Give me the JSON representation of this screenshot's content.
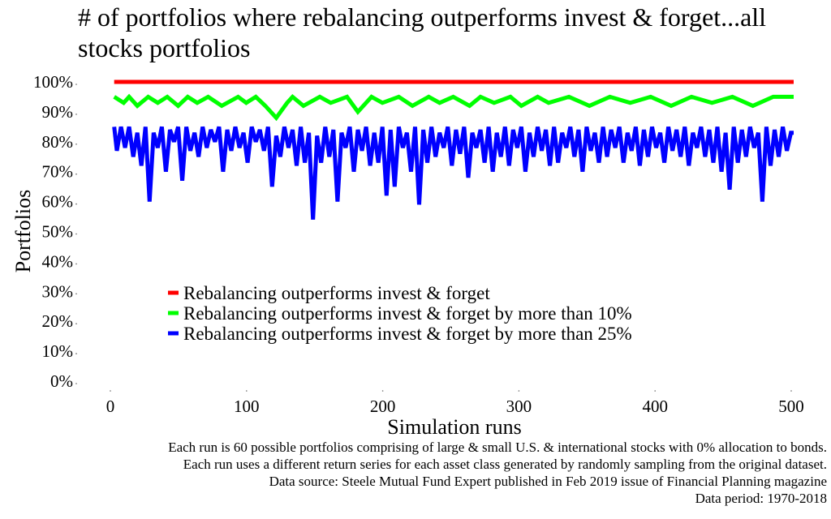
{
  "chart_data": {
    "type": "line",
    "title": "# of portfolios where rebalancing outperforms invest & forget...all stocks portfolios",
    "xlabel": "Simulation runs",
    "ylabel": "Portfolios",
    "xlim": [
      0,
      500
    ],
    "ylim": [
      0,
      100
    ],
    "x_ticks": [
      "0",
      "100",
      "200",
      "300",
      "400",
      "500"
    ],
    "y_ticks": [
      "0%",
      "10%",
      "20%",
      "30%",
      "40%",
      "50%",
      "60%",
      "70%",
      "80%",
      "90%",
      "100%"
    ],
    "grid": false,
    "legend_position": "center-left",
    "series": [
      {
        "name": "Rebalancing outperforms invest & forget",
        "color": "#ff0000",
        "x": [
          1,
          500
        ],
        "values": [
          100,
          100
        ]
      },
      {
        "name": "Rebalancing outperforms invest & forget by more than 10%",
        "color": "#00ff00",
        "x": [
          1,
          8,
          12,
          18,
          26,
          33,
          40,
          48,
          55,
          62,
          70,
          80,
          92,
          98,
          105,
          112,
          120,
          128,
          132,
          140,
          152,
          160,
          172,
          180,
          190,
          198,
          210,
          220,
          232,
          240,
          250,
          262,
          270,
          280,
          292,
          300,
          312,
          320,
          335,
          350,
          365,
          380,
          395,
          410,
          425,
          440,
          455,
          470,
          485,
          500
        ],
        "values": [
          95,
          93,
          95,
          92,
          95,
          93,
          95,
          92,
          95,
          93,
          95,
          92,
          95,
          93,
          95,
          92,
          88,
          93,
          95,
          92,
          95,
          93,
          95,
          90,
          95,
          93,
          95,
          92,
          95,
          93,
          95,
          92,
          95,
          93,
          95,
          92,
          95,
          93,
          95,
          92,
          95,
          93,
          95,
          92,
          95,
          93,
          95,
          92,
          95,
          95
        ]
      },
      {
        "name": "Rebalancing outperforms invest & forget by more than 25%",
        "color": "#0000ff",
        "x": [
          1,
          3,
          6,
          9,
          12,
          15,
          18,
          21,
          24,
          27,
          30,
          33,
          36,
          39,
          42,
          45,
          48,
          51,
          54,
          57,
          60,
          63,
          66,
          69,
          72,
          75,
          78,
          81,
          84,
          87,
          90,
          93,
          96,
          99,
          102,
          105,
          108,
          111,
          114,
          117,
          120,
          123,
          126,
          129,
          132,
          135,
          138,
          141,
          144,
          147,
          150,
          153,
          156,
          159,
          162,
          165,
          168,
          171,
          174,
          177,
          180,
          183,
          186,
          189,
          192,
          195,
          198,
          201,
          204,
          207,
          210,
          213,
          216,
          219,
          222,
          225,
          228,
          231,
          234,
          237,
          240,
          243,
          246,
          249,
          252,
          255,
          258,
          261,
          264,
          267,
          270,
          273,
          276,
          279,
          282,
          285,
          288,
          291,
          294,
          297,
          300,
          303,
          306,
          309,
          312,
          315,
          318,
          321,
          324,
          327,
          330,
          333,
          336,
          339,
          342,
          345,
          348,
          351,
          354,
          357,
          360,
          363,
          366,
          369,
          372,
          375,
          378,
          381,
          384,
          387,
          390,
          393,
          396,
          399,
          402,
          405,
          408,
          411,
          414,
          417,
          420,
          423,
          426,
          429,
          432,
          435,
          438,
          441,
          444,
          447,
          450,
          453,
          456,
          459,
          462,
          465,
          468,
          471,
          474,
          477,
          480,
          483,
          486,
          489,
          492,
          495,
          498,
          500
        ],
        "values": [
          85,
          77,
          85,
          78,
          85,
          75,
          83,
          72,
          85,
          60,
          83,
          78,
          85,
          70,
          84,
          80,
          85,
          67,
          85,
          77,
          83,
          75,
          85,
          78,
          84,
          80,
          85,
          70,
          84,
          77,
          85,
          78,
          83,
          73,
          85,
          80,
          84,
          77,
          85,
          65,
          82,
          75,
          85,
          78,
          84,
          72,
          85,
          73,
          83,
          54,
          82,
          73,
          85,
          75,
          84,
          60,
          83,
          78,
          85,
          70,
          84,
          77,
          85,
          72,
          83,
          73,
          85,
          62,
          84,
          65,
          85,
          78,
          83,
          70,
          85,
          59,
          84,
          73,
          85,
          75,
          83,
          78,
          85,
          72,
          84,
          76,
          85,
          68,
          83,
          78,
          84,
          73,
          85,
          70,
          83,
          75,
          85,
          72,
          84,
          78,
          85,
          70,
          83,
          75,
          85,
          77,
          84,
          72,
          85,
          73,
          83,
          78,
          85,
          75,
          84,
          70,
          85,
          77,
          83,
          73,
          85,
          75,
          84,
          78,
          85,
          73,
          83,
          77,
          85,
          72,
          84,
          75,
          85,
          78,
          83,
          73,
          85,
          77,
          84,
          75,
          85,
          72,
          83,
          78,
          85,
          75,
          84,
          73,
          85,
          70,
          83,
          64,
          85,
          73,
          84,
          75,
          85,
          78,
          83,
          60,
          85,
          72,
          84,
          75,
          85,
          77,
          83,
          83
        ]
      }
    ]
  },
  "footer": {
    "line1": "Each run is 60 possible portfolios comprising of large & small U.S. & international stocks with 0% allocation to bonds.",
    "line2": "Each run uses a different return series for each asset class generated by randomly sampling from the original dataset.",
    "line3": "Data source: Steele Mutual Fund Expert published in Feb 2019 issue of Financial Planning magazine",
    "line4": "Data period: 1970-2018"
  }
}
